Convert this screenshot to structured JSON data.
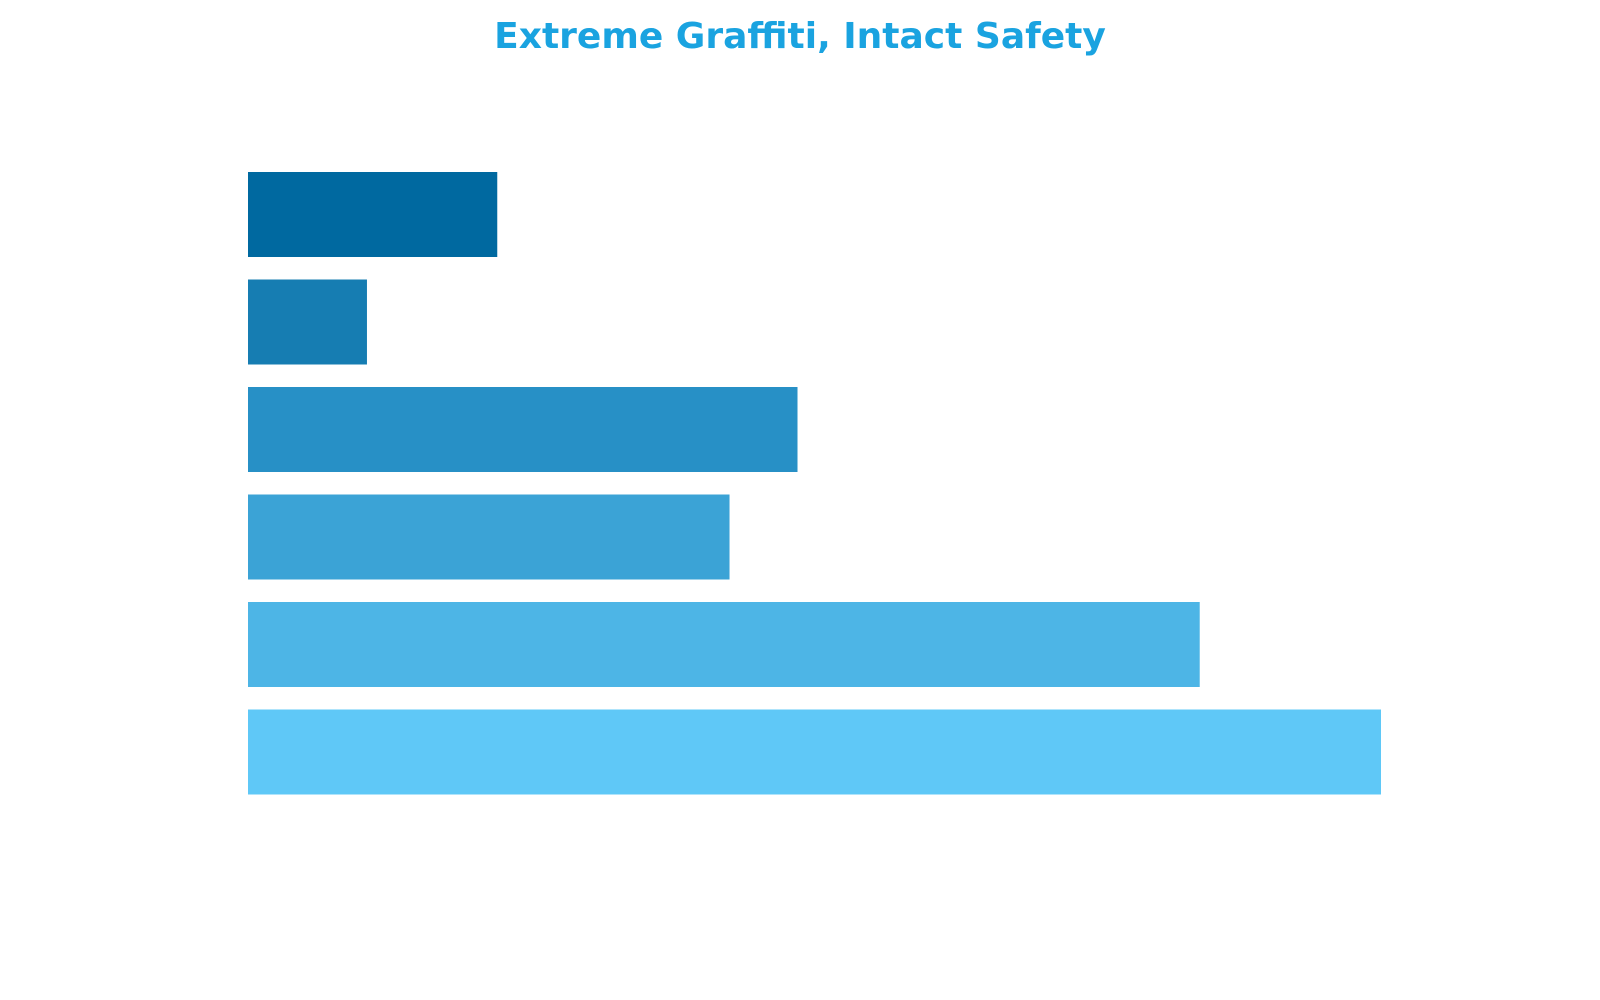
{
  "chart_data": {
    "type": "bar",
    "orientation": "horizontal",
    "title": "Extreme Graffiti, Intact Safety",
    "title_color": "#1aa3e0",
    "values": [
      22,
      10.5,
      48.5,
      42.5,
      84,
      100
    ],
    "colors": [
      "#0069a0",
      "#167db2",
      "#2790c6",
      "#3ba3d6",
      "#4db5e6",
      "#5fc8f7"
    ],
    "xlim": [
      0,
      100
    ]
  }
}
